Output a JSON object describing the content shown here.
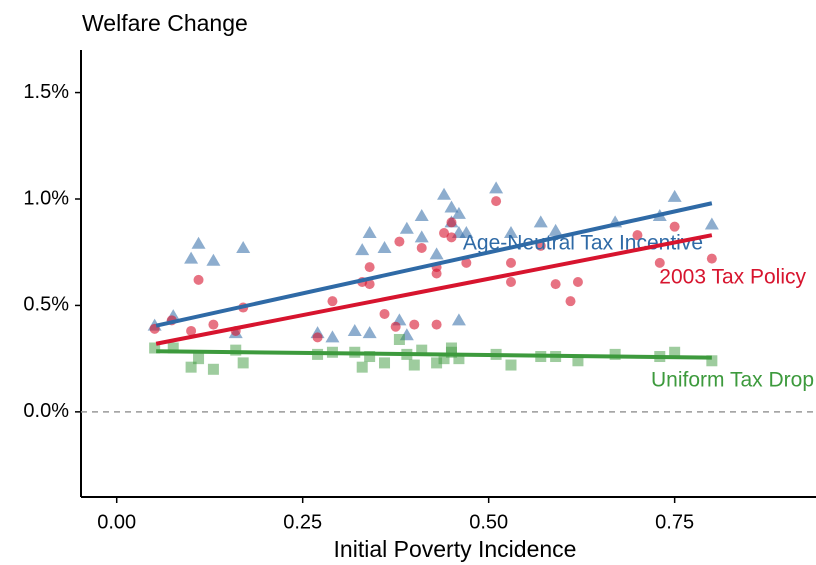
{
  "chart_data": {
    "type": "scatter",
    "title": "Welfare Change",
    "x_label": "Initial Poverty Incidence",
    "xlim": [
      -0.048,
      0.94
    ],
    "ylim": [
      -0.4,
      1.7
    ],
    "xticks": [
      {
        "value": 0,
        "label": "0.00"
      },
      {
        "value": 0.25,
        "label": "0.25"
      },
      {
        "value": 0.5,
        "label": "0.50"
      },
      {
        "value": 0.75,
        "label": "0.75"
      }
    ],
    "yticks": [
      {
        "value": 0,
        "label": "0.0%"
      },
      {
        "value": 0.5,
        "label": "0.5%"
      },
      {
        "value": 1,
        "label": "1.0%"
      },
      {
        "value": 1.5,
        "label": "1.5%"
      }
    ],
    "reference_line": 0,
    "series": [
      {
        "name": "Age-Neutral Tax Incentive",
        "color": "#2f6aa6",
        "marker": "triangle",
        "x": [
          0.051,
          0.076,
          0.1,
          0.11,
          0.13,
          0.16,
          0.17,
          0.27,
          0.29,
          0.32,
          0.33,
          0.34,
          0.34,
          0.36,
          0.38,
          0.39,
          0.39,
          0.41,
          0.41,
          0.43,
          0.44,
          0.45,
          0.45,
          0.46,
          0.46,
          0.46,
          0.47,
          0.51,
          0.53,
          0.57,
          0.59,
          0.67,
          0.73,
          0.75,
          0.8
        ],
        "values": [
          0.405,
          0.45,
          0.72,
          0.79,
          0.71,
          0.37,
          0.77,
          0.37,
          0.35,
          0.38,
          0.76,
          0.84,
          0.37,
          0.77,
          0.43,
          0.86,
          0.36,
          0.82,
          0.92,
          0.74,
          1.02,
          0.96,
          0.89,
          0.93,
          0.43,
          0.84,
          0.84,
          1.05,
          0.84,
          0.89,
          0.85,
          0.89,
          0.92,
          1.01,
          0.88
        ],
        "fit": {
          "x": [
            0.053,
            0.8
          ],
          "y": [
            0.405,
            0.98
          ]
        }
      },
      {
        "name": "2003 Tax Policy",
        "color": "#d7142e",
        "marker": "circle",
        "x": [
          0.051,
          0.074,
          0.1,
          0.11,
          0.13,
          0.16,
          0.17,
          0.27,
          0.29,
          0.33,
          0.34,
          0.34,
          0.36,
          0.375,
          0.38,
          0.4,
          0.41,
          0.43,
          0.43,
          0.43,
          0.44,
          0.45,
          0.45,
          0.47,
          0.51,
          0.53,
          0.53,
          0.57,
          0.59,
          0.61,
          0.62,
          0.7,
          0.73,
          0.75,
          0.8
        ],
        "values": [
          0.39,
          0.43,
          0.38,
          0.62,
          0.41,
          0.38,
          0.49,
          0.35,
          0.52,
          0.61,
          0.6,
          0.68,
          0.46,
          0.4,
          0.8,
          0.41,
          0.77,
          0.41,
          0.68,
          0.65,
          0.84,
          0.89,
          0.82,
          0.7,
          0.99,
          0.61,
          0.7,
          0.78,
          0.6,
          0.52,
          0.61,
          0.83,
          0.7,
          0.87,
          0.72
        ],
        "fit": {
          "x": [
            0.053,
            0.8
          ],
          "y": [
            0.32,
            0.83
          ]
        }
      },
      {
        "name": "Uniform Tax Drop",
        "color": "#3d9a3d",
        "marker": "square",
        "x": [
          0.051,
          0.076,
          0.1,
          0.11,
          0.13,
          0.16,
          0.17,
          0.27,
          0.29,
          0.32,
          0.33,
          0.34,
          0.36,
          0.38,
          0.39,
          0.4,
          0.41,
          0.43,
          0.44,
          0.45,
          0.45,
          0.46,
          0.51,
          0.53,
          0.57,
          0.59,
          0.62,
          0.67,
          0.73,
          0.75,
          0.8
        ],
        "values": [
          0.3,
          0.3,
          0.21,
          0.25,
          0.2,
          0.29,
          0.23,
          0.27,
          0.28,
          0.28,
          0.21,
          0.26,
          0.23,
          0.34,
          0.27,
          0.22,
          0.29,
          0.23,
          0.25,
          0.3,
          0.28,
          0.25,
          0.27,
          0.22,
          0.26,
          0.26,
          0.24,
          0.27,
          0.26,
          0.28,
          0.24
        ],
        "fit": {
          "x": [
            0.053,
            0.8
          ],
          "y": [
            0.285,
            0.255
          ]
        }
      }
    ]
  }
}
